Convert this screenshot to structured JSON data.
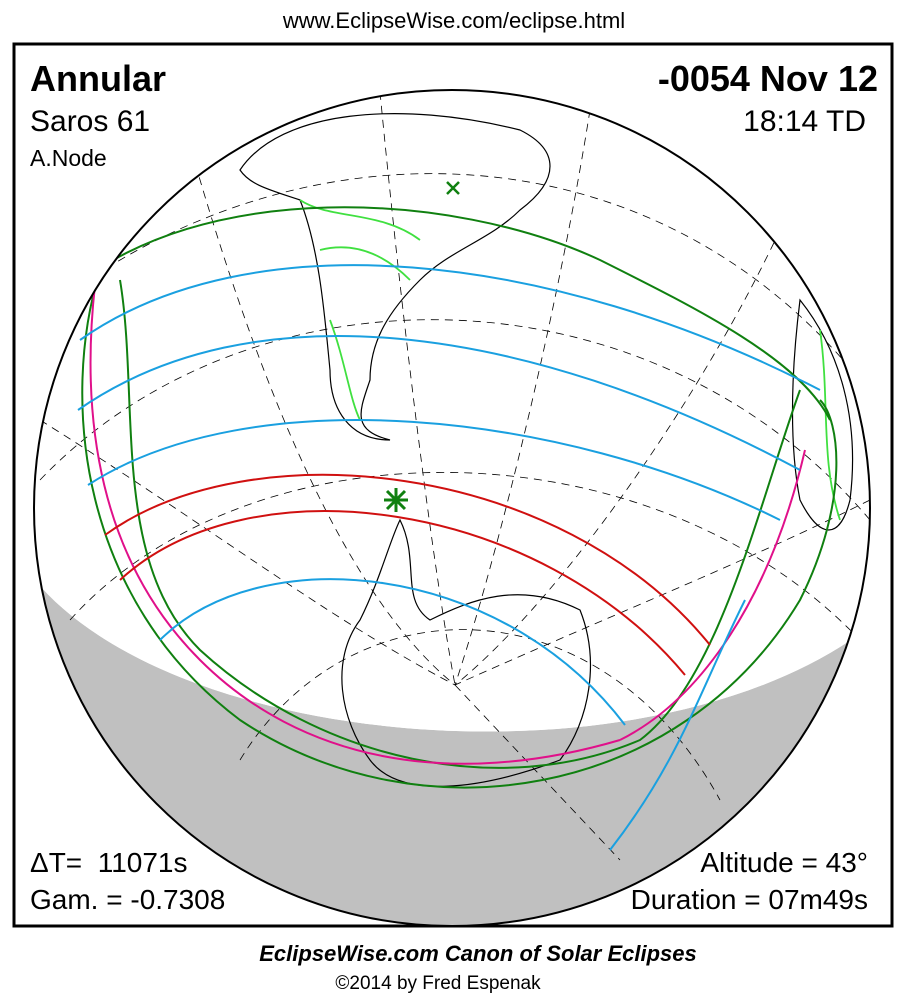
{
  "header": {
    "url": "www.EclipseWise.com/eclipse.html",
    "eclipse_type": "Annular",
    "saros": "Saros  61",
    "node": "A.Node",
    "date": "-0054 Nov 12",
    "time": "18:14 TD"
  },
  "footer": {
    "delta_t": "ΔT=  11071s",
    "gamma": "Gam. = -0.7308",
    "altitude": "Altitude = 43°",
    "duration": "Duration = 07m49s"
  },
  "credits": {
    "canon": "EclipseWise.com Canon of Solar Eclipses",
    "copyright": "©2014 by Fred Espenak"
  }
}
